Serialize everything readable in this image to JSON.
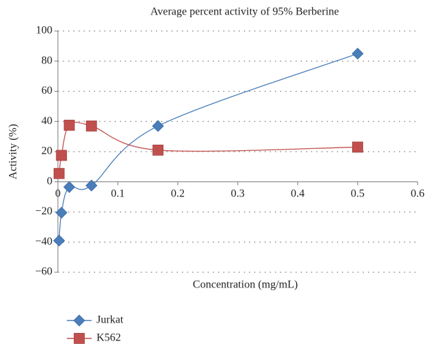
{
  "chart_data": {
    "type": "line",
    "title": "Average percent activity of 95% Berberine",
    "x_label": "Concentration (mg/mL)",
    "y_label": "Activity (%)",
    "xlim": [
      0,
      0.6
    ],
    "xticks": [
      0,
      0.1,
      0.2,
      0.3,
      0.4,
      0.5,
      0.6
    ],
    "ylim": [
      -60,
      100
    ],
    "yticks": [
      {
        "value": -60,
        "label": "−60"
      },
      {
        "value": -40,
        "label": "−40"
      },
      {
        "value": -20,
        "label": "−20"
      },
      0,
      20,
      40,
      60,
      80,
      100
    ],
    "grid": true,
    "legend": "bottom-left",
    "series": [
      {
        "name": "Jurkat",
        "color": "#4a7ebb",
        "marker": "diamond",
        "x": [
          0.002,
          0.006,
          0.019,
          0.056,
          0.167,
          0.5
        ],
        "values": [
          -39,
          -20.5,
          -3.5,
          -2.5,
          37,
          85
        ]
      },
      {
        "name": "K562",
        "color": "#c0504d",
        "marker": "square",
        "x": [
          0.002,
          0.006,
          0.019,
          0.056,
          0.167,
          0.5
        ],
        "values": [
          5.5,
          17.5,
          37.5,
          37,
          21,
          23
        ]
      }
    ]
  }
}
